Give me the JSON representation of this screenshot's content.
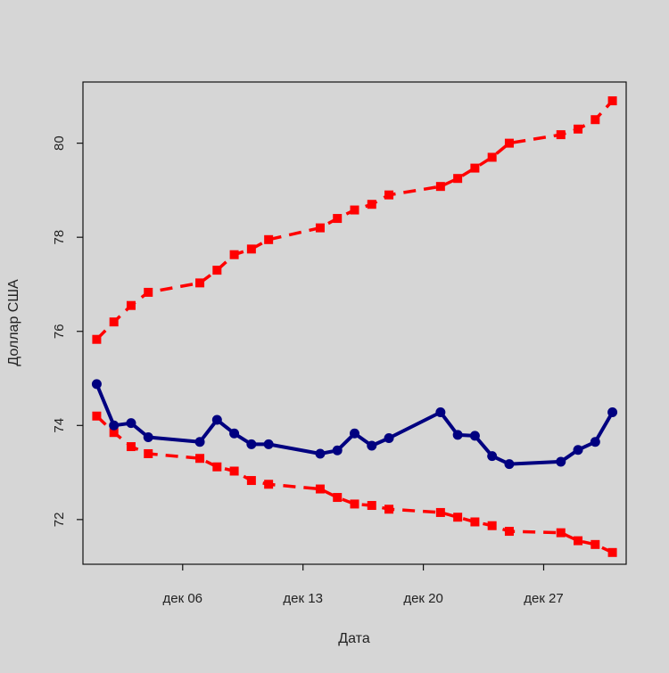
{
  "chart_data": {
    "type": "line",
    "title": "",
    "xlabel": "Дата",
    "ylabel": "Доллар США",
    "x_ticks": [
      {
        "day": 6,
        "label": "дек 06"
      },
      {
        "day": 13,
        "label": "дек 13"
      },
      {
        "day": 20,
        "label": "дек 20"
      },
      {
        "day": 27,
        "label": "дек 27"
      }
    ],
    "y_ticks": [
      72,
      74,
      76,
      78,
      80
    ],
    "xlim": [
      0.2,
      31.8
    ],
    "ylim": [
      71.05,
      81.3
    ],
    "grid": false,
    "legend": "none",
    "x": [
      1,
      2,
      3,
      4,
      7,
      8,
      9,
      10,
      11,
      14,
      15,
      16,
      17,
      18,
      21,
      22,
      23,
      24,
      25,
      28,
      29,
      30,
      31
    ],
    "series": [
      {
        "color": "#000080",
        "line_style": "solid",
        "values": [
          74.88,
          74.0,
          74.05,
          73.75,
          73.65,
          74.12,
          73.83,
          73.6,
          73.6,
          73.4,
          73.47,
          73.83,
          73.57,
          73.73,
          74.28,
          73.8,
          73.78,
          73.35,
          73.18,
          73.23,
          73.48,
          73.65,
          74.28
        ]
      },
      {
        "color": "#ff0000",
        "line_style": "dashed",
        "values": [
          75.83,
          76.2,
          76.55,
          76.83,
          77.03,
          77.3,
          77.63,
          77.75,
          77.95,
          78.2,
          78.4,
          78.58,
          78.7,
          78.9,
          79.08,
          79.25,
          79.47,
          79.7,
          80.0,
          80.18,
          80.3,
          80.5,
          80.9
        ]
      },
      {
        "color": "#ff0000",
        "line_style": "dashed",
        "values": [
          74.2,
          73.85,
          73.55,
          73.4,
          73.3,
          73.12,
          73.03,
          72.83,
          72.75,
          72.65,
          72.47,
          72.33,
          72.3,
          72.22,
          72.15,
          72.05,
          71.95,
          71.87,
          71.75,
          71.72,
          71.55,
          71.47,
          71.3
        ]
      }
    ]
  }
}
